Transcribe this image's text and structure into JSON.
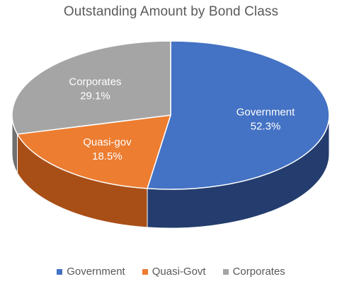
{
  "chart_data": {
    "type": "pie",
    "title": "Outstanding Amount by Bond Class",
    "slices": [
      {
        "category": "Government",
        "value": 52.3,
        "value_label": "52.3%",
        "slice_label": "Government",
        "color": "#4472C4",
        "side_color": "#243D6E"
      },
      {
        "category": "Quasi-Govt",
        "value": 18.5,
        "value_label": "18.5%",
        "slice_label": "Quasi-gov",
        "color": "#ED7D31",
        "side_color": "#A84F17"
      },
      {
        "category": "Corporates",
        "value": 29.1,
        "value_label": "29.1%",
        "slice_label": "Corporates",
        "color": "#A5A5A5",
        "side_color": "#6F6F6F"
      }
    ],
    "legend": {
      "position": "bottom",
      "entries": [
        "Government",
        "Quasi-Govt",
        "Corporates"
      ]
    },
    "style": "3d-tilted"
  }
}
